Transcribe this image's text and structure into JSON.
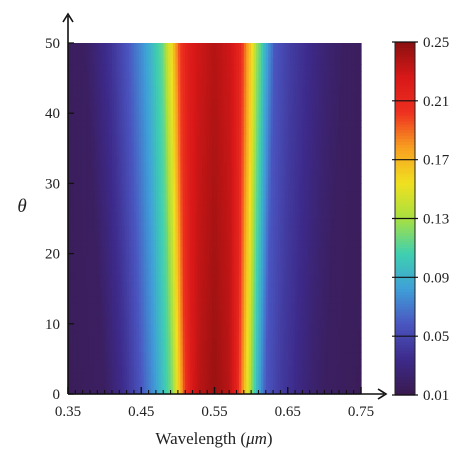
{
  "chart_data": {
    "type": "heatmap",
    "title": "",
    "xlabel": "Wavelength (",
    "xlabel_unit": "μm",
    "xlabel_close": ")",
    "ylabel": "θ",
    "xlim": [
      0.35,
      0.75
    ],
    "ylim": [
      0,
      50
    ],
    "x_ticks": [
      0.35,
      0.45,
      0.55,
      0.65,
      0.75
    ],
    "x_tick_labels": [
      "0.35",
      "0.45",
      "0.55",
      "0.65",
      "0.75"
    ],
    "y_ticks": [
      0,
      10,
      20,
      30,
      40,
      50
    ],
    "y_tick_labels": [
      "0",
      "10",
      "20",
      "30",
      "40",
      "50"
    ],
    "colorbar": {
      "min": 0.0,
      "max": 0.25,
      "ticks": [
        0.25,
        0.21,
        0.17,
        0.13,
        0.09,
        0.05,
        0.01
      ],
      "tick_labels": [
        "0.25",
        "0.21",
        "0.17",
        "0.13",
        "0.09",
        "0.05",
        "0.01"
      ],
      "colormap": [
        "#3a1a4e",
        "#3d2a8a",
        "#4a55c0",
        "#3f9fd8",
        "#3fd0b0",
        "#a8e040",
        "#f0e020",
        "#f8a020",
        "#ee3020",
        "#d81818",
        "#8a1010"
      ]
    },
    "x": [
      0.35,
      0.4,
      0.43,
      0.45,
      0.47,
      0.49,
      0.5,
      0.51,
      0.52,
      0.53,
      0.54,
      0.55,
      0.56,
      0.57,
      0.58,
      0.59,
      0.6,
      0.61,
      0.62,
      0.64,
      0.66,
      0.68,
      0.7,
      0.75
    ],
    "profile_center": [
      0.005,
      0.008,
      0.03,
      0.05,
      0.075,
      0.11,
      0.15,
      0.2,
      0.225,
      0.235,
      0.24,
      0.245,
      0.24,
      0.235,
      0.215,
      0.17,
      0.12,
      0.08,
      0.05,
      0.035,
      0.025,
      0.015,
      0.008,
      0.005
    ],
    "center_decay_note_units": "degrees",
    "peak_theta0": 0.248,
    "peak_theta50": 0.225
  }
}
